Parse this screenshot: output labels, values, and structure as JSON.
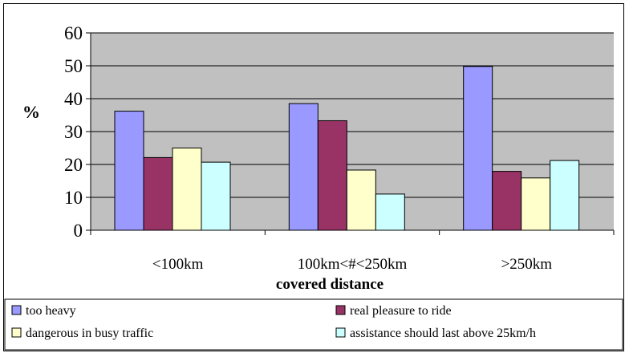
{
  "chart_data": {
    "type": "bar",
    "title": "",
    "xlabel": "covered distance",
    "ylabel": "%",
    "ylim": [
      0,
      60
    ],
    "yticks": [
      0,
      10,
      20,
      30,
      40,
      50,
      60
    ],
    "grid": true,
    "legend_position": "bottom",
    "plot_background": "#c0c0c0",
    "categories": [
      "<100km",
      "100km<#<250km",
      ">250km"
    ],
    "series": [
      {
        "name": "too heavy",
        "color": "#9999ff",
        "values": [
          36.2,
          38.5,
          49.8
        ]
      },
      {
        "name": "real pleasure to ride",
        "color": "#993366",
        "values": [
          22.1,
          33.3,
          17.9
        ]
      },
      {
        "name": "dangerous in busy traffic",
        "color": "#ffffcc",
        "values": [
          25.0,
          18.3,
          15.9
        ]
      },
      {
        "name": "assistance should last above 25km/h",
        "color": "#ccffff",
        "values": [
          20.7,
          11.0,
          21.2
        ]
      }
    ]
  }
}
